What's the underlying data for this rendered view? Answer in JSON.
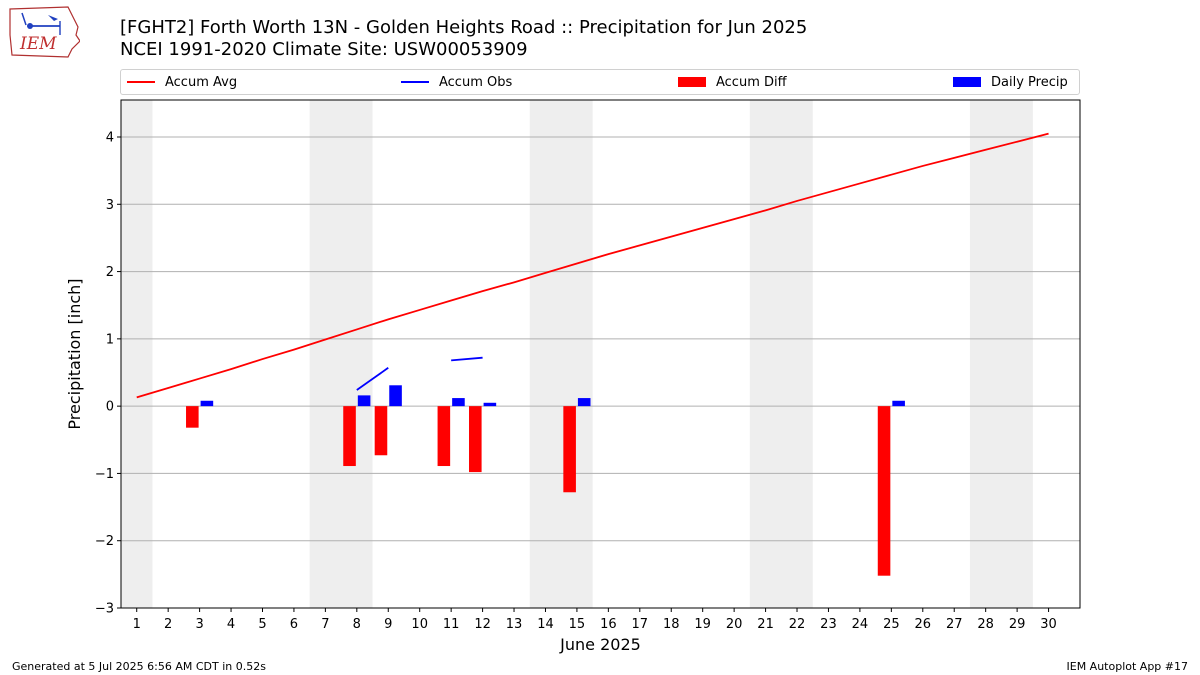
{
  "chart_data": {
    "type": "bar",
    "title": "[FGHT2] Forth Worth 13N - Golden Heights Road :: Precipitation for Jun 2025",
    "subtitle": "NCEI 1991-2020 Climate Site: USW00053909",
    "xlabel": "June 2025",
    "ylabel": "Precipitation [inch]",
    "ylim": [
      -3.0,
      4.55
    ],
    "xlim": [
      0.5,
      31
    ],
    "y_ticks": [
      -3,
      -2,
      -1,
      0,
      1,
      2,
      3,
      4
    ],
    "y_tick_labels": [
      "−3",
      "−2",
      "−1",
      "0",
      "1",
      "2",
      "3",
      "4"
    ],
    "x_ticks": [
      1,
      2,
      3,
      4,
      5,
      6,
      7,
      8,
      9,
      10,
      11,
      12,
      13,
      14,
      15,
      16,
      17,
      18,
      19,
      20,
      21,
      22,
      23,
      24,
      25,
      26,
      27,
      28,
      29,
      30
    ],
    "grid": "horizontal",
    "legend_position": "top",
    "weekend_shading": [
      [
        0.5,
        1.5
      ],
      [
        6.5,
        8.5
      ],
      [
        13.5,
        15.5
      ],
      [
        20.5,
        22.5
      ],
      [
        27.5,
        29.5
      ]
    ],
    "series": [
      {
        "name": "Accum Avg",
        "kind": "line",
        "color": "#ff0000",
        "x": [
          1,
          2,
          3,
          4,
          5,
          6,
          7,
          8,
          9,
          10,
          11,
          12,
          13,
          14,
          15,
          16,
          17,
          18,
          19,
          20,
          21,
          22,
          23,
          24,
          25,
          26,
          27,
          28,
          29,
          30
        ],
        "values": [
          0.13,
          0.27,
          0.41,
          0.55,
          0.7,
          0.84,
          0.99,
          1.14,
          1.29,
          1.43,
          1.57,
          1.71,
          1.84,
          1.98,
          2.12,
          2.26,
          2.39,
          2.52,
          2.65,
          2.78,
          2.91,
          3.05,
          3.18,
          3.31,
          3.44,
          3.57,
          3.69,
          3.81,
          3.93,
          4.05
        ]
      },
      {
        "name": "Accum Obs",
        "kind": "line",
        "color": "#0000ff",
        "segments": [
          {
            "x": [
              8,
              9
            ],
            "values": [
              0.24,
              0.57
            ]
          },
          {
            "x": [
              11,
              12
            ],
            "values": [
              0.68,
              0.72
            ]
          }
        ]
      },
      {
        "name": "Accum Diff",
        "kind": "bar",
        "color": "#ff0000",
        "x": [
          3,
          8,
          9,
          11,
          12,
          15,
          25
        ],
        "values": [
          -0.32,
          -0.89,
          -0.73,
          -0.89,
          -0.98,
          -1.28,
          -2.52
        ]
      },
      {
        "name": "Daily Precip",
        "kind": "bar",
        "color": "#0000ff",
        "x": [
          3,
          8,
          9,
          11,
          12,
          15,
          25
        ],
        "values": [
          0.08,
          0.16,
          0.31,
          0.12,
          0.05,
          0.12,
          0.08
        ]
      }
    ]
  },
  "footer": {
    "left": "Generated at 5 Jul 2025 6:56 AM CDT in 0.52s",
    "right": "IEM Autoplot App #17"
  },
  "logo": {
    "text": "IEM",
    "icon": "iem-logo-icon"
  }
}
